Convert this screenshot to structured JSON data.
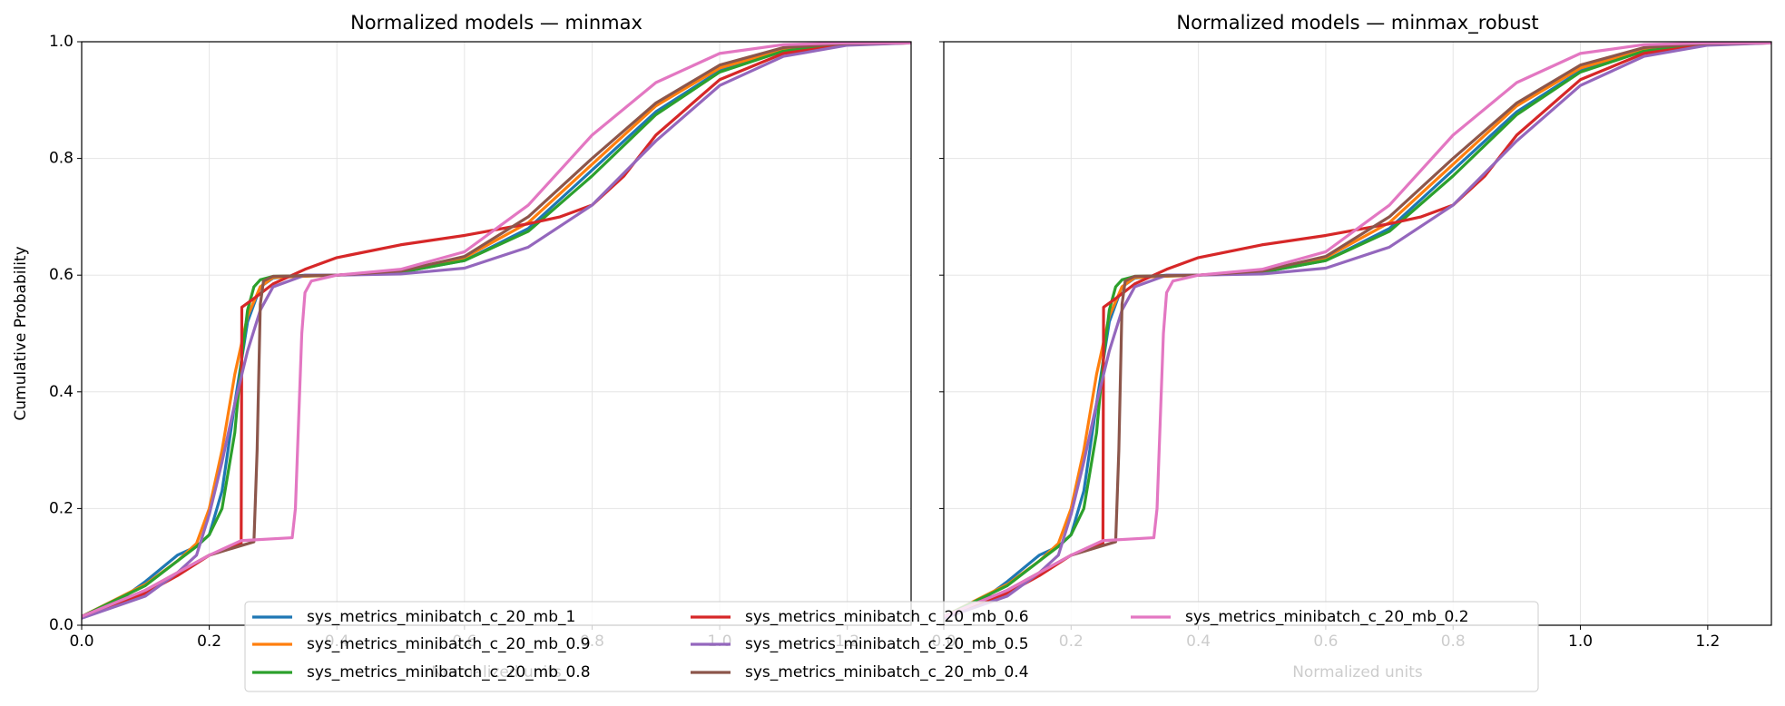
{
  "chart_data": [
    {
      "type": "line",
      "title": "Normalized models — minmax",
      "xlabel": "Normalized units",
      "ylabel": "Cumulative Probability",
      "xlim": [
        0,
        1.3
      ],
      "xticks": [
        {
          "value": 0,
          "label": "0.0"
        },
        0.2,
        0.4,
        0.6,
        0.8,
        {
          "value": 1,
          "label": "1.0"
        },
        1.2
      ],
      "ylim": [
        0,
        1
      ],
      "yticks": [
        {
          "value": 0,
          "label": "0.0"
        },
        0.2,
        0.4,
        0.6,
        0.8,
        {
          "value": 1,
          "label": "1.0"
        }
      ],
      "grid": true,
      "legend": "lower center",
      "series": [
        {
          "name": "sys_metrics_minibatch_c_20_mb_1",
          "color": "#1f77b4",
          "x": [
            0,
            0.05,
            0.1,
            0.15,
            0.18,
            0.2,
            0.22,
            0.24,
            0.26,
            0.28,
            0.3,
            0.35,
            0.4,
            0.5,
            0.6,
            0.7,
            0.8,
            0.9,
            1,
            1.1,
            1.2,
            1.3
          ],
          "values": [
            0.015,
            0.035,
            0.075,
            0.12,
            0.135,
            0.155,
            0.23,
            0.38,
            0.52,
            0.58,
            0.595,
            0.6,
            0.6,
            0.605,
            0.625,
            0.68,
            0.78,
            0.88,
            0.95,
            0.985,
            0.997,
            0.998
          ]
        },
        {
          "name": "sys_metrics_minibatch_c_20_mb_0.9",
          "color": "#ff7f0e",
          "x": [
            0,
            0.1,
            0.15,
            0.18,
            0.2,
            0.22,
            0.24,
            0.26,
            0.28,
            0.3,
            0.4,
            0.5,
            0.6,
            0.7,
            0.8,
            0.9,
            1,
            1.1,
            1.2,
            1.3
          ],
          "values": [
            0.015,
            0.07,
            0.11,
            0.14,
            0.2,
            0.3,
            0.43,
            0.53,
            0.58,
            0.596,
            0.6,
            0.607,
            0.63,
            0.69,
            0.79,
            0.89,
            0.955,
            0.987,
            0.997,
            0.998
          ]
        },
        {
          "name": "sys_metrics_minibatch_c_20_mb_0.8",
          "color": "#2ca02c",
          "x": [
            0,
            0.1,
            0.15,
            0.18,
            0.2,
            0.22,
            0.24,
            0.25,
            0.26,
            0.27,
            0.28,
            0.3,
            0.4,
            0.5,
            0.6,
            0.7,
            0.8,
            0.9,
            1,
            1.1,
            1.2,
            1.3
          ],
          "values": [
            0.015,
            0.068,
            0.11,
            0.135,
            0.155,
            0.2,
            0.33,
            0.45,
            0.54,
            0.58,
            0.592,
            0.598,
            0.6,
            0.605,
            0.625,
            0.675,
            0.77,
            0.875,
            0.948,
            0.984,
            0.997,
            0.998
          ]
        },
        {
          "name": "sys_metrics_minibatch_c_20_mb_0.6",
          "color": "#d62728",
          "x": [
            0,
            0.1,
            0.15,
            0.2,
            0.25,
            0.251,
            0.27,
            0.3,
            0.35,
            0.4,
            0.5,
            0.6,
            0.7,
            0.75,
            0.8,
            0.85,
            0.9,
            1,
            1.1,
            1.2,
            1.3
          ],
          "values": [
            0.015,
            0.055,
            0.085,
            0.12,
            0.14,
            0.545,
            0.56,
            0.585,
            0.61,
            0.63,
            0.652,
            0.668,
            0.688,
            0.7,
            0.72,
            0.77,
            0.84,
            0.935,
            0.98,
            0.995,
            0.998
          ]
        },
        {
          "name": "sys_metrics_minibatch_c_20_mb_0.5",
          "color": "#9467bd",
          "x": [
            0,
            0.1,
            0.15,
            0.18,
            0.2,
            0.22,
            0.24,
            0.26,
            0.28,
            0.3,
            0.35,
            0.4,
            0.5,
            0.6,
            0.7,
            0.8,
            0.9,
            1,
            1.1,
            1.2,
            1.3
          ],
          "values": [
            0.012,
            0.05,
            0.09,
            0.12,
            0.19,
            0.28,
            0.38,
            0.47,
            0.54,
            0.58,
            0.6,
            0.6,
            0.602,
            0.612,
            0.648,
            0.72,
            0.83,
            0.925,
            0.975,
            0.994,
            0.998
          ]
        },
        {
          "name": "sys_metrics_minibatch_c_20_mb_0.4",
          "color": "#8c564b",
          "x": [
            0,
            0.1,
            0.2,
            0.27,
            0.275,
            0.28,
            0.285,
            0.3,
            0.4,
            0.5,
            0.6,
            0.7,
            0.8,
            0.9,
            1,
            1.1,
            1.2,
            1.3
          ],
          "values": [
            0.015,
            0.06,
            0.12,
            0.143,
            0.3,
            0.55,
            0.59,
            0.598,
            0.6,
            0.607,
            0.632,
            0.7,
            0.8,
            0.895,
            0.96,
            0.99,
            0.997,
            0.998
          ]
        },
        {
          "name": "sys_metrics_minibatch_c_20_mb_0.2",
          "color": "#e377c2",
          "x": [
            0,
            0.1,
            0.2,
            0.25,
            0.33,
            0.335,
            0.34,
            0.345,
            0.35,
            0.36,
            0.4,
            0.5,
            0.6,
            0.7,
            0.8,
            0.9,
            1,
            1.1,
            1.2,
            1.3
          ],
          "values": [
            0.015,
            0.06,
            0.12,
            0.145,
            0.15,
            0.2,
            0.35,
            0.5,
            0.57,
            0.59,
            0.6,
            0.61,
            0.64,
            0.72,
            0.84,
            0.93,
            0.98,
            0.995,
            0.998,
            0.998
          ]
        }
      ]
    },
    {
      "type": "line",
      "title": "Normalized models — minmax_robust",
      "xlabel": "Normalized units",
      "xlim": [
        0,
        1.3
      ],
      "xticks": [
        {
          "value": 0,
          "label": "0.0"
        },
        0.2,
        0.4,
        0.6,
        0.8,
        {
          "value": 1,
          "label": "1.0"
        },
        1.2
      ],
      "ylim": [
        0,
        1
      ],
      "yticks": [
        0,
        0.2,
        0.4,
        0.6,
        0.8,
        1
      ],
      "ytick_labels": false,
      "grid": true,
      "series": [
        {
          "color": "#1f77b4",
          "x": [
            0,
            0.05,
            0.1,
            0.15,
            0.18,
            0.2,
            0.22,
            0.24,
            0.26,
            0.28,
            0.3,
            0.35,
            0.4,
            0.5,
            0.6,
            0.7,
            0.8,
            0.9,
            1,
            1.1,
            1.2,
            1.3
          ],
          "values": [
            0.015,
            0.035,
            0.075,
            0.12,
            0.135,
            0.155,
            0.23,
            0.38,
            0.52,
            0.58,
            0.595,
            0.6,
            0.6,
            0.605,
            0.625,
            0.68,
            0.78,
            0.88,
            0.95,
            0.985,
            0.997,
            0.998
          ]
        },
        {
          "color": "#ff7f0e",
          "x": [
            0,
            0.1,
            0.15,
            0.18,
            0.2,
            0.22,
            0.24,
            0.26,
            0.28,
            0.3,
            0.4,
            0.5,
            0.6,
            0.7,
            0.8,
            0.9,
            1,
            1.1,
            1.2,
            1.3
          ],
          "values": [
            0.015,
            0.07,
            0.11,
            0.14,
            0.2,
            0.3,
            0.43,
            0.53,
            0.58,
            0.596,
            0.6,
            0.607,
            0.63,
            0.69,
            0.79,
            0.89,
            0.955,
            0.987,
            0.997,
            0.998
          ]
        },
        {
          "color": "#2ca02c",
          "x": [
            0,
            0.1,
            0.15,
            0.18,
            0.2,
            0.22,
            0.24,
            0.25,
            0.26,
            0.27,
            0.28,
            0.3,
            0.4,
            0.5,
            0.6,
            0.7,
            0.8,
            0.9,
            1,
            1.1,
            1.2,
            1.3
          ],
          "values": [
            0.015,
            0.068,
            0.11,
            0.135,
            0.155,
            0.2,
            0.33,
            0.45,
            0.54,
            0.58,
            0.592,
            0.598,
            0.6,
            0.605,
            0.625,
            0.675,
            0.77,
            0.875,
            0.948,
            0.984,
            0.997,
            0.998
          ]
        },
        {
          "color": "#d62728",
          "x": [
            0,
            0.1,
            0.15,
            0.2,
            0.25,
            0.251,
            0.27,
            0.3,
            0.35,
            0.4,
            0.5,
            0.6,
            0.7,
            0.75,
            0.8,
            0.85,
            0.9,
            1,
            1.1,
            1.2,
            1.3
          ],
          "values": [
            0.015,
            0.055,
            0.085,
            0.12,
            0.14,
            0.545,
            0.56,
            0.585,
            0.61,
            0.63,
            0.652,
            0.668,
            0.688,
            0.7,
            0.72,
            0.77,
            0.84,
            0.935,
            0.98,
            0.995,
            0.998
          ]
        },
        {
          "color": "#9467bd",
          "x": [
            0,
            0.1,
            0.15,
            0.18,
            0.2,
            0.22,
            0.24,
            0.26,
            0.28,
            0.3,
            0.35,
            0.4,
            0.5,
            0.6,
            0.7,
            0.8,
            0.9,
            1,
            1.1,
            1.2,
            1.3
          ],
          "values": [
            0.012,
            0.05,
            0.09,
            0.12,
            0.19,
            0.28,
            0.38,
            0.47,
            0.54,
            0.58,
            0.6,
            0.6,
            0.602,
            0.612,
            0.648,
            0.72,
            0.83,
            0.925,
            0.975,
            0.994,
            0.998
          ]
        },
        {
          "color": "#8c564b",
          "x": [
            0,
            0.1,
            0.2,
            0.27,
            0.275,
            0.28,
            0.285,
            0.3,
            0.4,
            0.5,
            0.6,
            0.7,
            0.8,
            0.9,
            1,
            1.1,
            1.2,
            1.3
          ],
          "values": [
            0.015,
            0.06,
            0.12,
            0.143,
            0.3,
            0.55,
            0.59,
            0.598,
            0.6,
            0.607,
            0.632,
            0.7,
            0.8,
            0.895,
            0.96,
            0.99,
            0.997,
            0.998
          ]
        },
        {
          "color": "#e377c2",
          "x": [
            0,
            0.1,
            0.2,
            0.25,
            0.33,
            0.335,
            0.34,
            0.345,
            0.35,
            0.36,
            0.4,
            0.5,
            0.6,
            0.7,
            0.8,
            0.9,
            1,
            1.1,
            1.2,
            1.3
          ],
          "values": [
            0.015,
            0.06,
            0.12,
            0.145,
            0.15,
            0.2,
            0.35,
            0.5,
            0.57,
            0.59,
            0.6,
            0.61,
            0.64,
            0.72,
            0.84,
            0.93,
            0.98,
            0.995,
            0.998,
            0.998
          ]
        }
      ]
    }
  ]
}
